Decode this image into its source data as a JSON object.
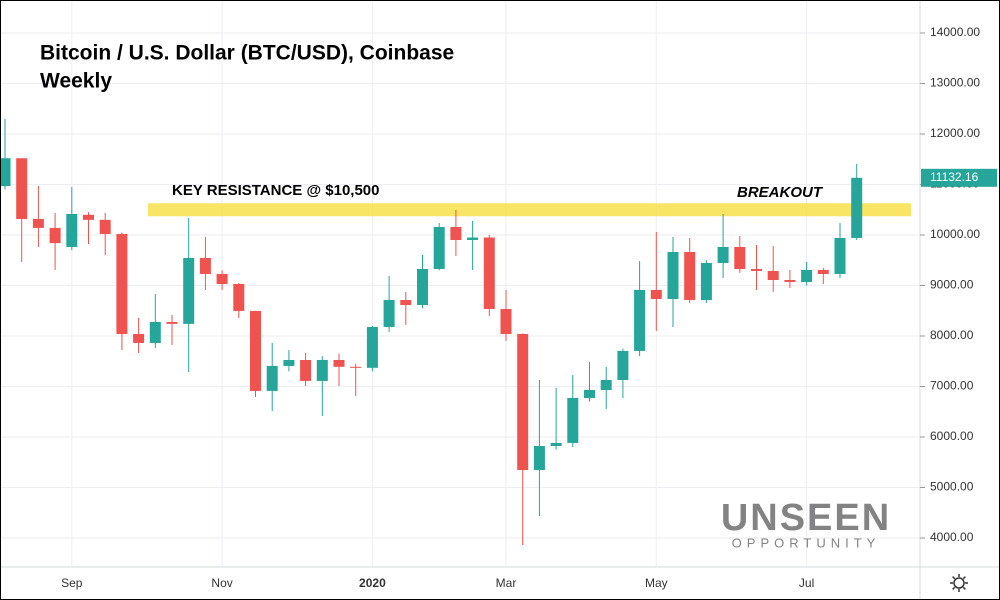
{
  "chart_data": {
    "type": "candlestick",
    "title": "Bitcoin / U.S. Dollar (BTC/USD), Coinbase",
    "subtitle": "Weekly",
    "annotations": {
      "resistance_label": "KEY RESISTANCE @ $10,500",
      "breakout_label": "BREAKOUT"
    },
    "resistance": 10500,
    "resistance_color": "#f7df4a",
    "last_price": 11132.16,
    "watermark": {
      "brand": "UNSEEN",
      "tagline": "OPPORTUNITY"
    },
    "up_color": "#26a69a",
    "down_color": "#ef5350",
    "categories": [
      null,
      null,
      null,
      null,
      "Sep",
      null,
      null,
      null,
      null,
      null,
      null,
      null,
      null,
      "Nov",
      null,
      null,
      null,
      null,
      null,
      null,
      null,
      null,
      "2020",
      null,
      null,
      null,
      null,
      null,
      null,
      null,
      "Mar",
      null,
      null,
      null,
      null,
      null,
      null,
      null,
      null,
      "May",
      null,
      null,
      null,
      null,
      null,
      null,
      null,
      null,
      "Jul",
      null,
      null,
      null
    ],
    "open": [
      10970,
      11520,
      10317,
      10140,
      9763,
      10400,
      10300,
      10020,
      8040,
      7862,
      8278,
      8240,
      9545,
      9228,
      9030,
      8496,
      6912,
      7407,
      7525,
      7110,
      7525,
      7390,
      7370,
      8179,
      8713,
      8614,
      9327,
      10159,
      9901,
      9950,
      8535,
      8040,
      5347,
      5822,
      5882,
      6773,
      6931,
      7129,
      7704,
      8911,
      8733,
      9663,
      8713,
      9446,
      9763,
      9327,
      9288,
      9109,
      9070,
      9307,
      9228,
      9941
    ],
    "close": [
      11520,
      10317,
      10140,
      9840,
      10416,
      10300,
      10020,
      8040,
      7862,
      8278,
      8240,
      9545,
      9228,
      9030,
      8496,
      6912,
      7407,
      7525,
      7110,
      7525,
      7390,
      7370,
      8179,
      8713,
      8614,
      9327,
      10159,
      9901,
      9950,
      8535,
      8040,
      5347,
      5822,
      5882,
      6773,
      6931,
      7129,
      7704,
      8911,
      8733,
      9663,
      8713,
      9446,
      9763,
      9327,
      9288,
      9109,
      9070,
      9307,
      9228,
      9941,
      11132
    ],
    "high": [
      12300,
      11520,
      10970,
      10436,
      10950,
      10450,
      10436,
      10050,
      8357,
      8832,
      8416,
      10337,
      9961,
      9300,
      9050,
      8500,
      7862,
      7723,
      7664,
      7600,
      7650,
      7450,
      8200,
      9188,
      8872,
      9604,
      10238,
      10495,
      10278,
      10000,
      8911,
      8050,
      7129,
      6971,
      7228,
      7486,
      7387,
      7750,
      9485,
      10060,
      9961,
      9941,
      9500,
      10416,
      9980,
      9802,
      9782,
      9307,
      9466,
      9350,
      10238,
      11406
    ],
    "low": [
      10900,
      9466,
      9763,
      9307,
      9700,
      9822,
      9604,
      7723,
      7664,
      7760,
      7822,
      7288,
      8911,
      8911,
      8357,
      6793,
      6516,
      7300,
      7010,
      6417,
      7010,
      6813,
      7300,
      8080,
      8218,
      8550,
      9300,
      9584,
      9307,
      8397,
      7900,
      3862,
      4437,
      5750,
      5800,
      6700,
      6555,
      6773,
      7600,
      8100,
      8179,
      8650,
      8654,
      9149,
      9250,
      8911,
      8872,
      8950,
      9000,
      9030,
      9150,
      9900
    ],
    "ylim": [
      3426,
      14653
    ],
    "yticks": [
      {
        "value": 4000,
        "label": "4000.00"
      },
      {
        "value": 5000,
        "label": "5000.00"
      },
      {
        "value": 6000,
        "label": "6000.00"
      },
      {
        "value": 7000,
        "label": "7000.00"
      },
      {
        "value": 8000,
        "label": "8000.00"
      },
      {
        "value": 9000,
        "label": "9000.00"
      },
      {
        "value": 10000,
        "label": "10000.00"
      },
      {
        "value": 11000,
        "label": "11000.00"
      },
      {
        "value": 12000,
        "label": "12000.00"
      },
      {
        "value": 13000,
        "label": "13000.00"
      },
      {
        "value": 14000,
        "label": "14000.00"
      }
    ],
    "grid": true
  }
}
